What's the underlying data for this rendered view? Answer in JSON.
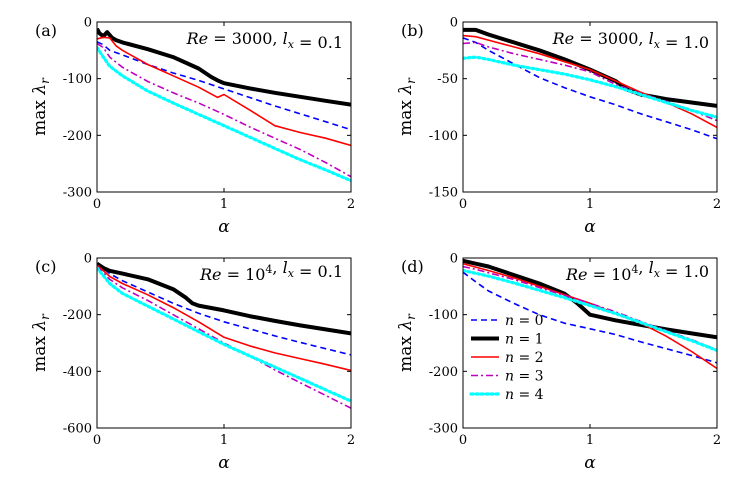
{
  "series_styles": [
    {
      "name": "n = 0",
      "color": "#0000ff",
      "width": 1.6,
      "dash": "6,4"
    },
    {
      "name": "n = 1",
      "color": "#000000",
      "width": 4.0,
      "dash": ""
    },
    {
      "name": "n = 2",
      "color": "#ff0000",
      "width": 1.6,
      "dash": ""
    },
    {
      "name": "n = 3",
      "color": "#bf00bf",
      "width": 1.6,
      "dash": "7,3,2,3"
    },
    {
      "name": "n = 4",
      "color": "#00ffff",
      "width": 3.2,
      "dash": "2,3"
    }
  ],
  "chart_data": [
    {
      "type": "line",
      "panel": "(a)",
      "title": "Re = 3000, l_x = 0.1",
      "xlabel": "α",
      "ylabel": "max λ_r",
      "xlim": [
        0,
        2
      ],
      "ylim": [
        -300,
        0
      ],
      "xticks": [
        0,
        1,
        2
      ],
      "yticks": [
        0,
        -100,
        -200,
        -300
      ],
      "series": [
        {
          "name": "n = 0",
          "x": [
            0,
            0.05,
            0.1,
            0.2,
            0.4,
            0.6,
            0.8,
            1.0,
            1.2,
            1.4,
            1.6,
            1.8,
            2.0
          ],
          "y": [
            -35,
            -40,
            -50,
            -58,
            -75,
            -90,
            -103,
            -118,
            -133,
            -148,
            -162,
            -176,
            -190
          ]
        },
        {
          "name": "n = 1",
          "x": [
            0,
            0.02,
            0.05,
            0.08,
            0.12,
            0.15,
            0.2,
            0.4,
            0.6,
            0.8,
            0.9,
            0.95,
            1.0,
            1.2,
            1.4,
            1.6,
            1.8,
            2.0
          ],
          "y": [
            -12,
            -20,
            -25,
            -18,
            -28,
            -32,
            -36,
            -48,
            -62,
            -82,
            -97,
            -103,
            -108,
            -117,
            -125,
            -132,
            -139,
            -146
          ]
        },
        {
          "name": "n = 2",
          "x": [
            0,
            0.05,
            0.1,
            0.15,
            0.2,
            0.4,
            0.6,
            0.8,
            0.95,
            1.0,
            1.2,
            1.4,
            1.6,
            1.8,
            2.0
          ],
          "y": [
            -30,
            -27,
            -28,
            -42,
            -50,
            -75,
            -95,
            -115,
            -133,
            -128,
            -155,
            -183,
            -195,
            -205,
            -218
          ]
        },
        {
          "name": "n = 3",
          "x": [
            0,
            0.05,
            0.1,
            0.2,
            0.4,
            0.6,
            0.8,
            1.0,
            1.2,
            1.4,
            1.6,
            1.8,
            2.0
          ],
          "y": [
            -38,
            -45,
            -62,
            -80,
            -105,
            -125,
            -143,
            -163,
            -185,
            -205,
            -225,
            -248,
            -273
          ]
        },
        {
          "name": "n = 4",
          "x": [
            0,
            0.05,
            0.1,
            0.2,
            0.4,
            0.6,
            0.8,
            1.0,
            1.2,
            1.4,
            1.6,
            1.8,
            2.0
          ],
          "y": [
            -45,
            -62,
            -78,
            -95,
            -122,
            -143,
            -163,
            -183,
            -203,
            -223,
            -243,
            -261,
            -280
          ]
        }
      ]
    },
    {
      "type": "line",
      "panel": "(b)",
      "title": "Re = 3000, l_x = 1.0",
      "xlabel": "α",
      "ylabel": "max λ_r",
      "xlim": [
        0,
        2
      ],
      "ylim": [
        -150,
        0
      ],
      "xticks": [
        0,
        1,
        2
      ],
      "yticks": [
        0,
        -50,
        -100,
        -150
      ],
      "series": [
        {
          "name": "n = 0",
          "x": [
            0,
            0.1,
            0.2,
            0.4,
            0.6,
            0.8,
            1.0,
            1.2,
            1.4,
            1.6,
            1.8,
            2.0
          ],
          "y": [
            -14,
            -18,
            -25,
            -37,
            -49,
            -58,
            -66,
            -73,
            -81,
            -88,
            -95,
            -103
          ]
        },
        {
          "name": "n = 1",
          "x": [
            0,
            0.1,
            0.2,
            0.4,
            0.6,
            0.8,
            1.0,
            1.2,
            1.3,
            1.4,
            1.6,
            1.8,
            2.0
          ],
          "y": [
            -7,
            -7,
            -11,
            -18,
            -25,
            -33,
            -42,
            -52,
            -60,
            -64,
            -68,
            -71,
            -74
          ]
        },
        {
          "name": "n = 2",
          "x": [
            0,
            0.1,
            0.2,
            0.4,
            0.6,
            0.8,
            1.0,
            1.2,
            1.4,
            1.6,
            1.8,
            2.0
          ],
          "y": [
            -12,
            -13,
            -16,
            -22,
            -28,
            -35,
            -42,
            -52,
            -62,
            -71,
            -81,
            -93
          ]
        },
        {
          "name": "n = 3",
          "x": [
            0,
            0.1,
            0.2,
            0.4,
            0.6,
            0.8,
            1.0,
            1.2,
            1.4,
            1.6,
            1.8,
            2.0
          ],
          "y": [
            -19,
            -18,
            -22,
            -28,
            -33,
            -38,
            -44,
            -55,
            -63,
            -70,
            -78,
            -87
          ]
        },
        {
          "name": "n = 4",
          "x": [
            0,
            0.1,
            0.2,
            0.4,
            0.6,
            0.8,
            1.0,
            1.2,
            1.4,
            1.6,
            1.8,
            2.0
          ],
          "y": [
            -32,
            -31,
            -33,
            -38,
            -42,
            -46,
            -51,
            -57,
            -64,
            -71,
            -78,
            -84
          ]
        }
      ]
    },
    {
      "type": "line",
      "panel": "(c)",
      "title": "Re = 10^4, l_x = 0.1",
      "xlabel": "α",
      "ylabel": "max λ_r",
      "xlim": [
        0,
        2
      ],
      "ylim": [
        -600,
        0
      ],
      "xticks": [
        0,
        1,
        2
      ],
      "yticks": [
        0,
        -200,
        -400,
        -600
      ],
      "series": [
        {
          "name": "n = 0",
          "x": [
            0,
            0.1,
            0.2,
            0.4,
            0.6,
            0.8,
            1.0,
            1.2,
            1.4,
            1.6,
            1.8,
            2.0
          ],
          "y": [
            -20,
            -55,
            -80,
            -120,
            -160,
            -195,
            -225,
            -250,
            -275,
            -298,
            -320,
            -342
          ]
        },
        {
          "name": "n = 1",
          "x": [
            0,
            0.05,
            0.1,
            0.2,
            0.4,
            0.6,
            0.7,
            0.75,
            0.8,
            1.0,
            1.2,
            1.4,
            1.6,
            1.8,
            2.0
          ],
          "y": [
            -20,
            -35,
            -45,
            -55,
            -75,
            -110,
            -140,
            -160,
            -168,
            -185,
            -205,
            -222,
            -238,
            -252,
            -266
          ]
        },
        {
          "name": "n = 2",
          "x": [
            0,
            0.1,
            0.2,
            0.4,
            0.6,
            0.8,
            1.0,
            1.2,
            1.4,
            1.6,
            1.8,
            2.0
          ],
          "y": [
            -25,
            -65,
            -90,
            -130,
            -175,
            -225,
            -280,
            -310,
            -335,
            -355,
            -375,
            -397
          ]
        },
        {
          "name": "n = 3",
          "x": [
            0,
            0.1,
            0.2,
            0.4,
            0.6,
            0.8,
            1.0,
            1.2,
            1.4,
            1.6,
            1.8,
            2.0
          ],
          "y": [
            -30,
            -75,
            -105,
            -150,
            -200,
            -250,
            -300,
            -345,
            -395,
            -440,
            -485,
            -530
          ]
        },
        {
          "name": "n = 4",
          "x": [
            0,
            0.1,
            0.2,
            0.4,
            0.6,
            0.8,
            1.0,
            1.2,
            1.4,
            1.6,
            1.8,
            2.0
          ],
          "y": [
            -35,
            -90,
            -125,
            -170,
            -215,
            -260,
            -305,
            -345,
            -385,
            -425,
            -465,
            -505
          ]
        }
      ]
    },
    {
      "type": "line",
      "panel": "(d)",
      "title": "Re = 10^4, l_x = 1.0",
      "xlabel": "α",
      "ylabel": "max λ_r",
      "xlim": [
        0,
        2
      ],
      "ylim": [
        -300,
        0
      ],
      "xticks": [
        0,
        1,
        2
      ],
      "yticks": [
        0,
        -100,
        -200,
        -300
      ],
      "legend": "center-left",
      "series": [
        {
          "name": "n = 0",
          "x": [
            0,
            0.1,
            0.2,
            0.4,
            0.6,
            0.8,
            1.0,
            1.2,
            1.4,
            1.6,
            1.8,
            2.0
          ],
          "y": [
            -25,
            -42,
            -58,
            -80,
            -100,
            -115,
            -125,
            -135,
            -148,
            -160,
            -172,
            -185
          ]
        },
        {
          "name": "n = 1",
          "x": [
            0,
            0.1,
            0.2,
            0.4,
            0.6,
            0.8,
            0.9,
            1.0,
            1.2,
            1.4,
            1.6,
            1.8,
            2.0
          ],
          "y": [
            -5,
            -10,
            -15,
            -30,
            -45,
            -63,
            -80,
            -100,
            -110,
            -118,
            -126,
            -133,
            -140
          ]
        },
        {
          "name": "n = 2",
          "x": [
            0,
            0.1,
            0.2,
            0.4,
            0.6,
            0.8,
            1.0,
            1.2,
            1.4,
            1.6,
            1.8,
            2.0
          ],
          "y": [
            -10,
            -16,
            -22,
            -35,
            -50,
            -65,
            -80,
            -98,
            -115,
            -138,
            -165,
            -195
          ]
        },
        {
          "name": "n = 3",
          "x": [
            0,
            0.1,
            0.2,
            0.4,
            0.6,
            0.8,
            1.0,
            1.2,
            1.4,
            1.6,
            1.8,
            2.0
          ],
          "y": [
            -15,
            -20,
            -26,
            -38,
            -52,
            -66,
            -80,
            -95,
            -112,
            -128,
            -144,
            -162
          ]
        },
        {
          "name": "n = 4",
          "x": [
            0,
            0.1,
            0.2,
            0.4,
            0.6,
            0.8,
            1.0,
            1.2,
            1.4,
            1.6,
            1.8,
            2.0
          ],
          "y": [
            -22,
            -27,
            -32,
            -44,
            -57,
            -70,
            -84,
            -98,
            -114,
            -130,
            -146,
            -163
          ]
        }
      ]
    }
  ]
}
